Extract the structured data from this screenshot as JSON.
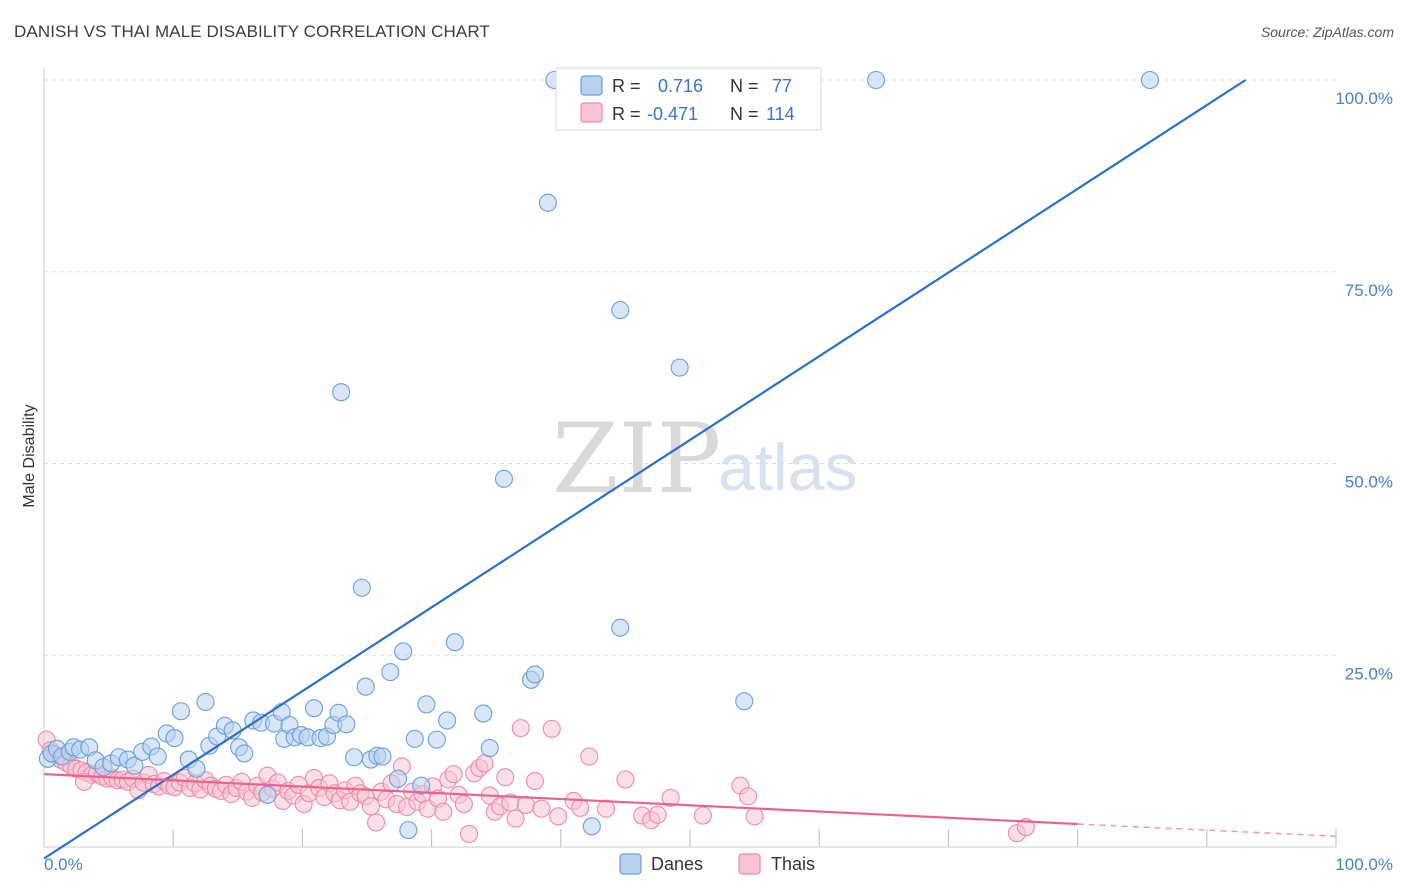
{
  "title": "DANISH VS THAI MALE DISABILITY CORRELATION CHART",
  "source": "Source: ZipAtlas.com",
  "watermark": {
    "zip": "ZIP",
    "atlas": "atlas"
  },
  "legend_stats": [
    {
      "r_label": "R =",
      "r_value": "0.716",
      "n_label": "N =",
      "n_value": "77"
    },
    {
      "r_label": "R =",
      "r_value": "-0.471",
      "n_label": "N =",
      "n_value": "114"
    }
  ],
  "bottom_legend": [
    {
      "label": "Danes"
    },
    {
      "label": "Thais"
    }
  ],
  "colors": {
    "danes_fill": "#b8d1f0",
    "danes_stroke": "#6a9fdc",
    "danes_line": "#2a6fcc",
    "thais_fill": "#f8c4d3",
    "thais_stroke": "#ee8aa8",
    "thais_line": "#e8648f",
    "grid": "#dddddd",
    "tick_text": "#4a80c8"
  },
  "chart_data": {
    "type": "scatter",
    "title": "DANISH VS THAI MALE DISABILITY CORRELATION CHART",
    "xlabel": "",
    "ylabel": "Male Disability",
    "xlim": [
      0,
      100
    ],
    "ylim": [
      0,
      100
    ],
    "x_tick_labels": [
      "0.0%",
      "100.0%"
    ],
    "y_ticks": [
      {
        "value": 25,
        "label": "25.0%"
      },
      {
        "value": 50,
        "label": "50.0%"
      },
      {
        "value": 75,
        "label": "75.0%"
      },
      {
        "value": 100,
        "label": "100.0%"
      }
    ],
    "grid": true,
    "legend_position": "top-center",
    "series": [
      {
        "name": "Danes",
        "r": 0.716,
        "n": 77,
        "trend": {
          "x": [
            0,
            93
          ],
          "y": [
            -1.5,
            100
          ]
        },
        "points": [
          [
            0.3,
            11.5
          ],
          [
            0.6,
            12.2
          ],
          [
            1.0,
            12.8
          ],
          [
            1.4,
            11.8
          ],
          [
            2.0,
            12.4
          ],
          [
            2.3,
            13.0
          ],
          [
            2.8,
            12.7
          ],
          [
            3.5,
            13.0
          ],
          [
            4.0,
            11.3
          ],
          [
            4.6,
            10.4
          ],
          [
            5.2,
            10.9
          ],
          [
            5.8,
            11.7
          ],
          [
            6.5,
            11.4
          ],
          [
            7.0,
            10.6
          ],
          [
            7.6,
            12.4
          ],
          [
            8.3,
            13.1
          ],
          [
            8.8,
            11.8
          ],
          [
            9.5,
            14.8
          ],
          [
            10.1,
            14.2
          ],
          [
            10.6,
            17.7
          ],
          [
            11.2,
            11.4
          ],
          [
            11.8,
            10.2
          ],
          [
            12.5,
            18.9
          ],
          [
            12.8,
            13.2
          ],
          [
            13.4,
            14.4
          ],
          [
            14.0,
            15.8
          ],
          [
            14.6,
            15.2
          ],
          [
            15.1,
            13.0
          ],
          [
            15.5,
            12.2
          ],
          [
            16.2,
            16.5
          ],
          [
            16.8,
            16.2
          ],
          [
            17.3,
            6.8
          ],
          [
            17.8,
            16.1
          ],
          [
            18.4,
            17.6
          ],
          [
            18.6,
            14.1
          ],
          [
            19.0,
            15.9
          ],
          [
            19.4,
            14.3
          ],
          [
            19.9,
            14.6
          ],
          [
            20.4,
            14.3
          ],
          [
            20.9,
            18.1
          ],
          [
            21.4,
            14.2
          ],
          [
            21.9,
            14.4
          ],
          [
            22.4,
            15.9
          ],
          [
            22.8,
            17.5
          ],
          [
            23.4,
            16.0
          ],
          [
            23.0,
            59.3
          ],
          [
            24.0,
            11.7
          ],
          [
            24.6,
            33.8
          ],
          [
            24.9,
            20.9
          ],
          [
            25.3,
            11.4
          ],
          [
            25.8,
            11.9
          ],
          [
            26.2,
            11.8
          ],
          [
            26.8,
            22.8
          ],
          [
            27.4,
            8.9
          ],
          [
            27.8,
            25.5
          ],
          [
            28.2,
            2.2
          ],
          [
            28.7,
            14.1
          ],
          [
            29.2,
            8.0
          ],
          [
            29.6,
            18.6
          ],
          [
            30.4,
            14.0
          ],
          [
            31.2,
            16.5
          ],
          [
            31.8,
            26.7
          ],
          [
            34.0,
            17.4
          ],
          [
            34.5,
            12.9
          ],
          [
            35.6,
            48.0
          ],
          [
            37.7,
            21.8
          ],
          [
            38.0,
            22.5
          ],
          [
            39.0,
            84.0
          ],
          [
            39.5,
            100.0
          ],
          [
            42.4,
            2.7
          ],
          [
            44.6,
            28.6
          ],
          [
            44.6,
            70.0
          ],
          [
            49.2,
            62.5
          ],
          [
            50.5,
            100.0
          ],
          [
            54.2,
            19.0
          ],
          [
            64.4,
            100.0
          ],
          [
            85.6,
            100.0
          ]
        ]
      },
      {
        "name": "Thais",
        "r": -0.471,
        "n": 114,
        "trend": {
          "x": [
            0,
            80
          ],
          "y": [
            9.5,
            3.0
          ]
        },
        "trend_dashed": {
          "x": [
            80,
            100
          ],
          "y": [
            3.0,
            1.4
          ]
        },
        "points": [
          [
            0.2,
            14.0
          ],
          [
            0.5,
            12.6
          ],
          [
            0.9,
            12.0
          ],
          [
            1.3,
            11.4
          ],
          [
            1.7,
            11.0
          ],
          [
            2.1,
            10.6
          ],
          [
            2.5,
            10.2
          ],
          [
            2.9,
            10.0
          ],
          [
            3.3,
            9.7
          ],
          [
            3.7,
            9.4
          ],
          [
            4.1,
            9.6
          ],
          [
            4.5,
            9.2
          ],
          [
            4.9,
            8.9
          ],
          [
            5.3,
            9.0
          ],
          [
            5.7,
            8.7
          ],
          [
            6.1,
            8.8
          ],
          [
            6.5,
            8.5
          ],
          [
            6.9,
            8.9
          ],
          [
            7.3,
            7.4
          ],
          [
            7.7,
            8.4
          ],
          [
            8.1,
            9.4
          ],
          [
            8.5,
            8.2
          ],
          [
            8.9,
            7.9
          ],
          [
            9.3,
            8.6
          ],
          [
            9.7,
            8.0
          ],
          [
            10.1,
            7.8
          ],
          [
            10.5,
            8.4
          ],
          [
            10.9,
            9.0
          ],
          [
            11.3,
            7.7
          ],
          [
            11.7,
            8.3
          ],
          [
            12.1,
            7.5
          ],
          [
            12.5,
            8.7
          ],
          [
            12.9,
            8.0
          ],
          [
            13.3,
            7.6
          ],
          [
            13.7,
            7.3
          ],
          [
            14.1,
            8.1
          ],
          [
            14.5,
            6.9
          ],
          [
            14.9,
            7.7
          ],
          [
            15.3,
            8.5
          ],
          [
            15.7,
            7.2
          ],
          [
            16.1,
            6.4
          ],
          [
            16.5,
            8.0
          ],
          [
            16.9,
            7.1
          ],
          [
            17.3,
            9.3
          ],
          [
            17.7,
            7.6
          ],
          [
            18.1,
            8.4
          ],
          [
            18.5,
            6.0
          ],
          [
            18.9,
            7.3
          ],
          [
            19.3,
            6.7
          ],
          [
            19.7,
            8.1
          ],
          [
            20.1,
            5.6
          ],
          [
            20.5,
            7.0
          ],
          [
            20.9,
            9.0
          ],
          [
            21.3,
            7.7
          ],
          [
            21.7,
            6.5
          ],
          [
            22.1,
            8.3
          ],
          [
            22.5,
            7.0
          ],
          [
            22.9,
            6.1
          ],
          [
            23.3,
            7.4
          ],
          [
            23.7,
            5.9
          ],
          [
            24.1,
            8.0
          ],
          [
            24.5,
            7.0
          ],
          [
            24.9,
            6.6
          ],
          [
            25.3,
            5.3
          ],
          [
            25.7,
            3.2
          ],
          [
            26.1,
            7.2
          ],
          [
            26.5,
            6.2
          ],
          [
            26.9,
            8.3
          ],
          [
            27.3,
            5.6
          ],
          [
            27.7,
            10.5
          ],
          [
            28.1,
            5.2
          ],
          [
            28.5,
            7.2
          ],
          [
            28.9,
            5.9
          ],
          [
            29.3,
            6.9
          ],
          [
            29.7,
            5.0
          ],
          [
            30.1,
            7.9
          ],
          [
            30.5,
            6.3
          ],
          [
            30.9,
            4.6
          ],
          [
            31.3,
            8.8
          ],
          [
            31.7,
            9.5
          ],
          [
            32.1,
            6.8
          ],
          [
            32.5,
            5.6
          ],
          [
            32.9,
            1.7
          ],
          [
            33.3,
            9.6
          ],
          [
            33.7,
            10.3
          ],
          [
            34.1,
            10.9
          ],
          [
            34.5,
            6.7
          ],
          [
            34.9,
            4.6
          ],
          [
            35.3,
            5.3
          ],
          [
            35.7,
            9.1
          ],
          [
            36.1,
            5.8
          ],
          [
            36.5,
            3.7
          ],
          [
            36.9,
            15.5
          ],
          [
            37.3,
            5.5
          ],
          [
            38.0,
            8.6
          ],
          [
            38.5,
            5.0
          ],
          [
            39.3,
            15.4
          ],
          [
            39.8,
            4.0
          ],
          [
            41.0,
            6.0
          ],
          [
            41.5,
            5.1
          ],
          [
            42.2,
            11.8
          ],
          [
            43.5,
            5.0
          ],
          [
            45.0,
            8.8
          ],
          [
            46.3,
            4.1
          ],
          [
            47.0,
            3.5
          ],
          [
            47.5,
            4.2
          ],
          [
            48.5,
            6.4
          ],
          [
            51.0,
            4.1
          ],
          [
            53.9,
            8.0
          ],
          [
            54.5,
            6.6
          ],
          [
            55.0,
            4.0
          ],
          [
            75.3,
            1.8
          ],
          [
            76.0,
            2.6
          ],
          [
            3.1,
            8.5
          ]
        ]
      }
    ]
  }
}
